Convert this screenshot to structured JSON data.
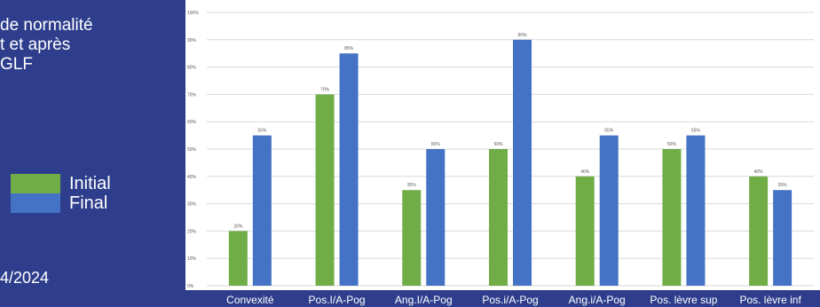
{
  "page": {
    "title": "de normalité\nt et après\nGLF",
    "date": "4/2024"
  },
  "colors": {
    "background": "#2e3e8c",
    "initial": "#70ad47",
    "final": "#4472c4",
    "grid": "#d9d9d9"
  },
  "chart_data": {
    "type": "bar",
    "title": "",
    "xlabel": "",
    "ylabel": "",
    "ylim": [
      0,
      100
    ],
    "yticks": [
      "0%",
      "10%",
      "20%",
      "30%",
      "40%",
      "50%",
      "60%",
      "70%",
      "80%",
      "90%",
      "100%"
    ],
    "grid": true,
    "legend_position": "left",
    "categories": [
      "Convexité",
      "Pos.I/A-Pog",
      "Ang.I/A-Pog",
      "Pos.i/A-Pog",
      "Ang.i/A-Pog",
      "Pos. lèvre sup",
      "Pos. lèvre inf"
    ],
    "series": [
      {
        "name": "Initial",
        "values": [
          20,
          70,
          35,
          50,
          40,
          50,
          40
        ],
        "labels": [
          "20%",
          "70%",
          "35%",
          "50%",
          "40%",
          "50%",
          "40%"
        ]
      },
      {
        "name": "Final",
        "values": [
          55,
          85,
          50,
          90,
          55,
          55,
          35
        ],
        "labels": [
          "55%",
          "85%",
          "50%",
          "90%",
          "55%",
          "55%",
          "35%"
        ]
      }
    ]
  }
}
